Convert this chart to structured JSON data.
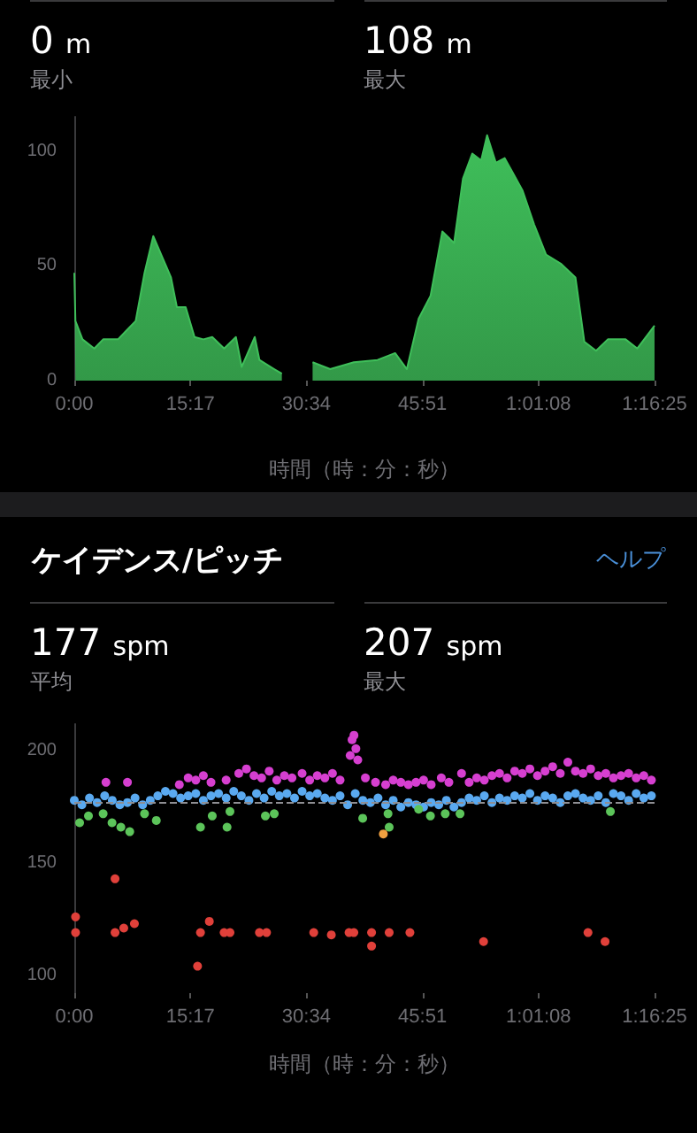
{
  "chart_data": [
    {
      "type": "area",
      "xlabel": "時間（時：分：秒）",
      "annotations": [
        "0 m",
        "最小",
        "108 m",
        "最大"
      ],
      "x": [
        0,
        9,
        65,
        158,
        228,
        345,
        415,
        485,
        555,
        624,
        694,
        764,
        811,
        880,
        950,
        1020,
        1090,
        1184,
        1277,
        1323,
        1426,
        1463,
        1580,
        1640,
        1760,
        1883,
        2022,
        2209,
        2396,
        2535,
        2628,
        2721,
        2815,
        2908,
        3001,
        3071,
        3145,
        3215,
        3262,
        3331,
        3401,
        3471,
        3541,
        3634,
        3727,
        3844,
        3960,
        4030,
        4123,
        4216,
        4356,
        4449,
        4585
      ],
      "series": [
        {
          "color": "#3fbf5a",
          "values": [
            47,
            26,
            18,
            14,
            18,
            18,
            22,
            26,
            47,
            63,
            54,
            45,
            32,
            32,
            19,
            18,
            19,
            14,
            19,
            6,
            19,
            9,
            5,
            3,
            null,
            8,
            5,
            8,
            9,
            12,
            5,
            27,
            37,
            65,
            60,
            88,
            99,
            96,
            107,
            95,
            97,
            90,
            83,
            68,
            55,
            51,
            45,
            17,
            13,
            18,
            18,
            14,
            24
          ]
        }
      ],
      "xlim": [
        0,
        4585
      ],
      "xticks": [
        {
          "value": 0,
          "label": "0:00"
        },
        {
          "value": 917,
          "label": "15:17"
        },
        {
          "value": 1834,
          "label": "30:34"
        },
        {
          "value": 2751,
          "label": "45:51"
        },
        {
          "value": 3668,
          "label": "1:01:08"
        },
        {
          "value": 4585,
          "label": "1:16:25"
        }
      ],
      "ylim": [
        0,
        115
      ],
      "yticks": [
        0,
        50,
        100
      ]
    },
    {
      "type": "scatter",
      "title": "ケイデンス/ピッチ",
      "xlabel": "時間（時：分：秒）",
      "annotations": [
        "ヘルプ",
        "177 spm",
        "平均",
        "207 spm",
        "最大"
      ],
      "marker": "circle",
      "series": [
        {
          "color": "#d63fd0",
          "x": [
            250,
            420,
            830,
            900,
            960,
            1020,
            1080,
            1200,
            1300,
            1360,
            1420,
            1480,
            1540,
            1600,
            1660,
            1720,
            1800,
            1860,
            1920,
            1980,
            2040,
            2100,
            2180,
            2195,
            2210,
            2225,
            2240,
            2300,
            2380,
            2460,
            2520,
            2580,
            2640,
            2700,
            2760,
            2820,
            2900,
            2960,
            3060,
            3120,
            3180,
            3240,
            3300,
            3360,
            3420,
            3480,
            3540,
            3600,
            3660,
            3720,
            3780,
            3840,
            3900,
            3960,
            4020,
            4080,
            4140,
            4200,
            4260,
            4320,
            4380,
            4440,
            4500,
            4560
          ],
          "values": [
            186,
            186,
            185,
            188,
            187,
            189,
            186,
            187,
            190,
            192,
            189,
            188,
            191,
            187,
            189,
            188,
            190,
            187,
            189,
            188,
            190,
            187,
            198,
            205,
            207,
            201,
            196,
            188,
            186,
            185,
            187,
            186,
            185,
            186,
            187,
            185,
            188,
            186,
            190,
            186,
            188,
            187,
            189,
            190,
            188,
            191,
            190,
            192,
            189,
            191,
            193,
            190,
            195,
            191,
            190,
            192,
            189,
            190,
            188,
            189,
            190,
            188,
            189,
            187
          ]
        },
        {
          "color": "#5aa9f0",
          "x": [
            0,
            60,
            120,
            180,
            240,
            300,
            360,
            420,
            480,
            540,
            600,
            660,
            720,
            780,
            840,
            900,
            960,
            1020,
            1080,
            1140,
            1200,
            1260,
            1320,
            1380,
            1440,
            1500,
            1560,
            1620,
            1680,
            1740,
            1800,
            1860,
            1920,
            1980,
            2040,
            2100,
            2160,
            2220,
            2280,
            2340,
            2400,
            2460,
            2520,
            2580,
            2640,
            2700,
            2760,
            2820,
            2880,
            2940,
            3000,
            3060,
            3120,
            3180,
            3240,
            3300,
            3360,
            3420,
            3480,
            3540,
            3600,
            3660,
            3720,
            3780,
            3840,
            3900,
            3960,
            4020,
            4080,
            4140,
            4200,
            4260,
            4320,
            4380,
            4440,
            4500,
            4560
          ],
          "values": [
            178,
            176,
            179,
            177,
            180,
            178,
            176,
            177,
            179,
            176,
            178,
            180,
            182,
            181,
            179,
            180,
            181,
            178,
            180,
            181,
            179,
            182,
            180,
            178,
            181,
            179,
            182,
            180,
            181,
            179,
            182,
            180,
            181,
            179,
            178,
            180,
            176,
            181,
            178,
            177,
            179,
            176,
            178,
            175,
            177,
            176,
            175,
            177,
            176,
            178,
            175,
            177,
            179,
            178,
            180,
            177,
            179,
            178,
            180,
            179,
            181,
            178,
            180,
            179,
            177,
            180,
            181,
            179,
            178,
            180,
            177,
            181,
            180,
            178,
            181,
            179,
            180
          ]
        },
        {
          "color": "#5cc45a",
          "x": [
            42,
            112,
            228,
            298,
            368,
            438,
            555,
            648,
            997,
            1090,
            1207,
            1230,
            1510,
            1580,
            2279,
            2479,
            2488,
            2721,
            2814,
            2931,
            3048,
            4236
          ],
          "values": [
            168,
            171,
            172,
            168,
            166,
            164,
            172,
            169,
            166,
            171,
            166,
            173,
            171,
            172,
            170,
            172,
            166,
            174,
            171,
            172,
            172,
            173
          ]
        },
        {
          "color": "#f0a040",
          "x": [
            2442
          ],
          "values": [
            163
          ]
        },
        {
          "color": "#e0403a",
          "x": [
            10,
            10,
            322,
            322,
            391,
            475,
            974,
            997,
            1067,
            1184,
            1230,
            1463,
            1519,
            1892,
            2031,
            2171,
            2209,
            2349,
            2349,
            2488,
            2652,
            3234,
            4059,
            4194
          ],
          "values": [
            126,
            119,
            143,
            119,
            121,
            123,
            104,
            119,
            124,
            119,
            119,
            119,
            119,
            119,
            118,
            119,
            119,
            119,
            113,
            119,
            119,
            115,
            119,
            115
          ]
        }
      ],
      "ref_lines": [
        {
          "axis": "y",
          "value": 177,
          "color": "#8e8e93",
          "line_style": "dashed"
        }
      ],
      "xlim": [
        0,
        4585
      ],
      "xticks": [
        {
          "value": 0,
          "label": "0:00"
        },
        {
          "value": 917,
          "label": "15:17"
        },
        {
          "value": 1834,
          "label": "30:34"
        },
        {
          "value": 2751,
          "label": "45:51"
        },
        {
          "value": 3668,
          "label": "1:01:08"
        },
        {
          "value": 4585,
          "label": "1:16:25"
        }
      ],
      "ylim": [
        92,
        212
      ],
      "yticks": [
        100,
        150,
        200
      ]
    }
  ]
}
